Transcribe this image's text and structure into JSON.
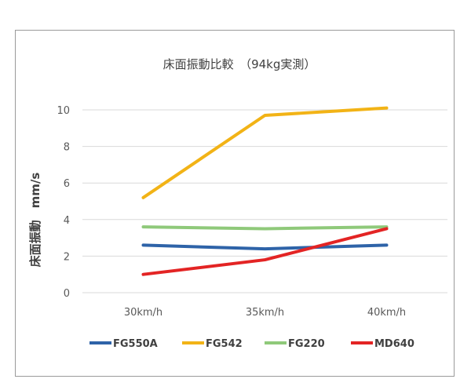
{
  "chart_data": {
    "type": "line",
    "title": "床面振動比較　（94kg実測）",
    "xlabel": "",
    "ylabel": "床面振動　mm/s",
    "categories": [
      "30km/h",
      "35km/h",
      "40km/h"
    ],
    "ylim": [
      0,
      10
    ],
    "yticks": [
      "0",
      "2",
      "4",
      "6",
      "8",
      "10"
    ],
    "grid": true,
    "legend_position": "bottom",
    "series": [
      {
        "name": "FG550A",
        "color": "#2e63a8",
        "values": [
          2.6,
          2.4,
          2.6
        ]
      },
      {
        "name": "FG542",
        "color": "#f2b316",
        "values": [
          5.2,
          9.7,
          10.1
        ]
      },
      {
        "name": "FG220",
        "color": "#8fc97a",
        "values": [
          3.6,
          3.5,
          3.6
        ]
      },
      {
        "name": "MD640",
        "color": "#e32424",
        "values": [
          1.0,
          1.8,
          3.5
        ]
      }
    ]
  }
}
